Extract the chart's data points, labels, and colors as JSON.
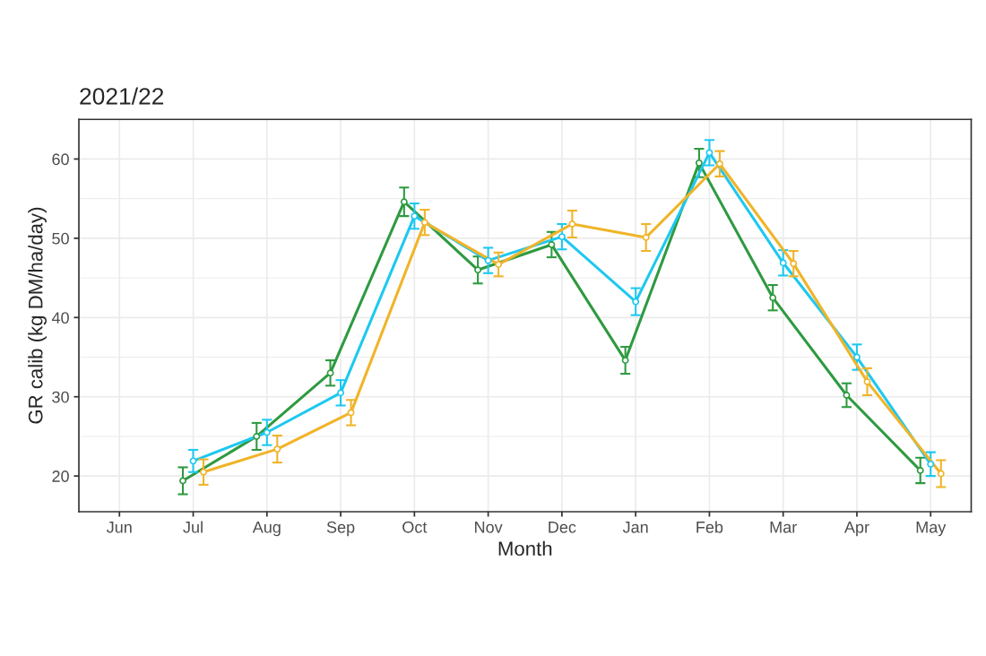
{
  "chart_data": {
    "type": "line",
    "title": "2021/22",
    "xlabel": "Month",
    "ylabel": "GR calib (kg DM/ha/day)",
    "categories": [
      "Jun",
      "Jul",
      "Aug",
      "Sep",
      "Oct",
      "Nov",
      "Dec",
      "Jan",
      "Feb",
      "Mar",
      "Apr",
      "May"
    ],
    "series": [
      {
        "color": "#2e9a40",
        "values": [
          null,
          19.4,
          25.0,
          33.0,
          54.6,
          46.0,
          49.2,
          34.6,
          59.5,
          42.5,
          30.2,
          20.7
        ],
        "errors": [
          null,
          1.7,
          1.7,
          1.6,
          1.8,
          1.7,
          1.6,
          1.7,
          1.8,
          1.6,
          1.5,
          1.6
        ]
      },
      {
        "color": "#1ec8f0",
        "values": [
          null,
          21.9,
          25.5,
          30.5,
          52.8,
          47.2,
          50.2,
          42.0,
          60.8,
          46.9,
          35.0,
          21.5
        ],
        "errors": [
          null,
          1.4,
          1.6,
          1.6,
          1.6,
          1.6,
          1.6,
          1.7,
          1.6,
          1.6,
          1.6,
          1.5
        ]
      },
      {
        "color": "#f0b429",
        "values": [
          null,
          20.5,
          23.4,
          28.0,
          52.0,
          46.7,
          51.8,
          50.1,
          59.4,
          46.8,
          31.9,
          20.3
        ],
        "errors": [
          null,
          1.6,
          1.7,
          1.6,
          1.6,
          1.5,
          1.7,
          1.7,
          1.6,
          1.6,
          1.7,
          1.7
        ]
      }
    ],
    "ylim": [
      15.5,
      65
    ],
    "yticks": [
      20,
      30,
      40,
      50,
      60
    ],
    "grid": true,
    "marker": "circle",
    "line_style": "solid"
  }
}
